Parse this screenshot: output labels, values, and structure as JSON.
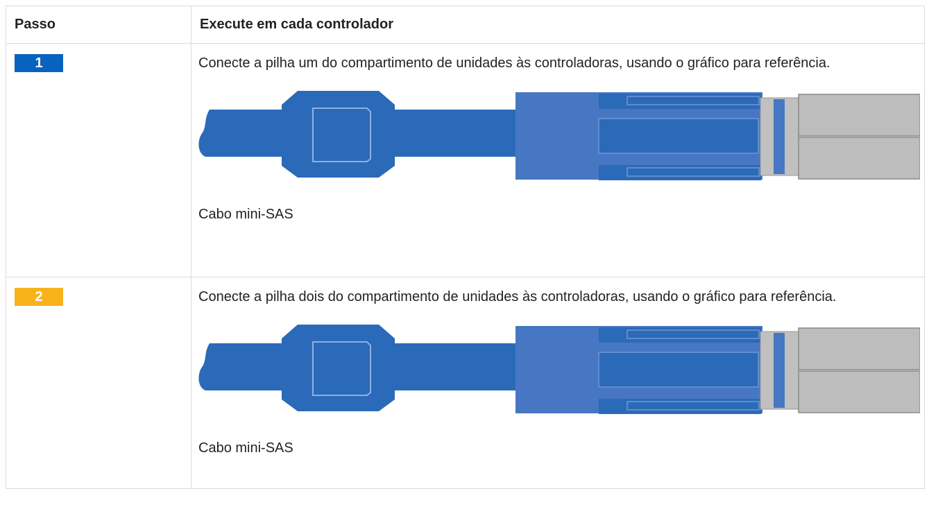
{
  "table": {
    "header": [
      "Passo",
      "Execute em cada controlador"
    ],
    "rows": [
      {
        "step": "1",
        "text": "Conecte a pilha um do compartimento de unidades às controladoras, usando o gráfico para referência.",
        "caption": "Cabo mini-SAS"
      },
      {
        "step": "2",
        "text": "Conecte a pilha dois do compartimento de unidades às controladoras, usando o gráfico para referência.",
        "caption": "Cabo mini-SAS"
      }
    ]
  }
}
